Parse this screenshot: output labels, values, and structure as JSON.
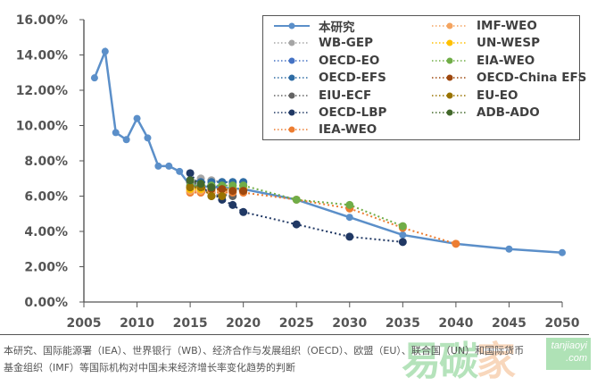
{
  "chart_data": {
    "type": "line",
    "title": "",
    "xlabel": "",
    "ylabel": "",
    "xlim": [
      2005,
      2050
    ],
    "ylim": [
      0,
      16
    ],
    "x_ticks": [
      "2005",
      "2010",
      "2015",
      "2020",
      "2025",
      "2030",
      "2035",
      "2040",
      "2045",
      "2050"
    ],
    "y_ticks": [
      "0.00%",
      "2.00%",
      "4.00%",
      "6.00%",
      "8.00%",
      "10.00%",
      "12.00%",
      "14.00%",
      "16.00%"
    ],
    "grid": false,
    "legend_placement": "top-right",
    "series": [
      {
        "name": "本研究",
        "color": "#5b8fc9",
        "style": "solid",
        "points": [
          [
            2006,
            12.7
          ],
          [
            2007,
            14.2
          ],
          [
            2008,
            9.6
          ],
          [
            2009,
            9.2
          ],
          [
            2010,
            10.4
          ],
          [
            2011,
            9.3
          ],
          [
            2012,
            7.7
          ],
          [
            2013,
            7.7
          ],
          [
            2014,
            7.4
          ],
          [
            2015,
            6.6
          ],
          [
            2020,
            6.4
          ],
          [
            2025,
            5.8
          ],
          [
            2030,
            4.8
          ],
          [
            2035,
            3.8
          ],
          [
            2040,
            3.3
          ],
          [
            2045,
            3.0
          ],
          [
            2050,
            2.8
          ]
        ]
      },
      {
        "name": "WB-GEP",
        "color": "#a5a5a5",
        "style": "dotted",
        "points": [
          [
            2015,
            6.8
          ],
          [
            2016,
            7.0
          ],
          [
            2017,
            6.9
          ],
          [
            2018,
            6.8
          ],
          [
            2019,
            6.7
          ]
        ]
      },
      {
        "name": "OECD-EO",
        "color": "#4472c4",
        "style": "dotted",
        "points": [
          [
            2015,
            6.9
          ],
          [
            2016,
            6.7
          ],
          [
            2017,
            6.6
          ],
          [
            2018,
            6.5
          ]
        ]
      },
      {
        "name": "OECD-EFS",
        "color": "#2e6ca4",
        "style": "dotted",
        "points": [
          [
            2015,
            6.8
          ],
          [
            2016,
            6.8
          ],
          [
            2017,
            6.8
          ],
          [
            2018,
            6.8
          ],
          [
            2019,
            6.8
          ],
          [
            2020,
            6.8
          ]
        ]
      },
      {
        "name": "EIU-ECF",
        "color": "#636363",
        "style": "dotted",
        "points": [
          [
            2015,
            6.8
          ],
          [
            2016,
            6.6
          ],
          [
            2017,
            6.0
          ],
          [
            2018,
            6.1
          ],
          [
            2019,
            6.0
          ]
        ]
      },
      {
        "name": "OECD-LBP",
        "color": "#203864",
        "style": "dotted",
        "points": [
          [
            2015,
            7.3
          ],
          [
            2016,
            6.5
          ],
          [
            2017,
            6.2
          ],
          [
            2018,
            5.8
          ],
          [
            2019,
            5.5
          ],
          [
            2020,
            5.1
          ],
          [
            2025,
            4.4
          ],
          [
            2030,
            3.7
          ],
          [
            2035,
            3.4
          ]
        ]
      },
      {
        "name": "IEA-WEO",
        "color": "#ed7d31",
        "style": "dotted",
        "points": [
          [
            2015,
            6.2
          ],
          [
            2016,
            6.2
          ],
          [
            2017,
            6.2
          ],
          [
            2018,
            6.2
          ],
          [
            2019,
            6.2
          ],
          [
            2020,
            6.2
          ],
          [
            2025,
            5.8
          ],
          [
            2030,
            5.3
          ],
          [
            2035,
            4.2
          ],
          [
            2040,
            3.3
          ]
        ]
      },
      {
        "name": "IMF-WEO",
        "color": "#f4a460",
        "style": "dotted",
        "points": [
          [
            2015,
            6.3
          ],
          [
            2016,
            6.3
          ],
          [
            2017,
            6.3
          ],
          [
            2018,
            6.3
          ],
          [
            2019,
            6.3
          ],
          [
            2020,
            6.3
          ]
        ]
      },
      {
        "name": "UN-WESP",
        "color": "#ffc000",
        "style": "dotted",
        "points": [
          [
            2015,
            6.4
          ],
          [
            2016,
            6.4
          ],
          [
            2017,
            6.4
          ],
          [
            2018,
            6.4
          ],
          [
            2019,
            6.4
          ],
          [
            2020,
            6.4
          ]
        ]
      },
      {
        "name": "EIA-WEO",
        "color": "#70ad47",
        "style": "dotted",
        "points": [
          [
            2015,
            6.6
          ],
          [
            2016,
            6.6
          ],
          [
            2017,
            6.6
          ],
          [
            2018,
            6.6
          ],
          [
            2019,
            6.6
          ],
          [
            2020,
            6.6
          ],
          [
            2025,
            5.8
          ],
          [
            2030,
            5.5
          ],
          [
            2035,
            4.3
          ]
        ]
      },
      {
        "name": "OECD-China EFS",
        "color": "#9e480e",
        "style": "dotted",
        "points": [
          [
            2015,
            6.5
          ],
          [
            2016,
            6.5
          ],
          [
            2017,
            6.4
          ],
          [
            2018,
            6.4
          ],
          [
            2019,
            6.3
          ],
          [
            2020,
            6.3
          ]
        ]
      },
      {
        "name": "EU-EO",
        "color": "#997300",
        "style": "dotted",
        "points": [
          [
            2015,
            6.5
          ],
          [
            2016,
            6.5
          ],
          [
            2017,
            6.0
          ],
          [
            2018,
            6.0
          ]
        ]
      },
      {
        "name": "ADB-ADO",
        "color": "#43682b",
        "style": "dotted",
        "points": [
          [
            2015,
            6.9
          ],
          [
            2016,
            6.7
          ],
          [
            2017,
            6.5
          ]
        ]
      }
    ]
  },
  "caption": {
    "line1": "本研究、国际能源署（IEA）、世界银行（WB）、经济合作与发展组织（OECD）、欧盟（EU）、联合国（UN）和国际货币",
    "line2": "基金组织（IMF）等国际机构对中国未来经济增长率变化趋势的判断"
  },
  "watermark": {
    "text_green": "易碳",
    "text_orange": "家",
    "badge_top": "tanjiaoyi",
    "badge_bottom": ".com"
  }
}
